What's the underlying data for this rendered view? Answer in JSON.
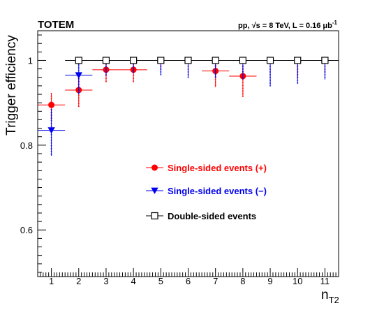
{
  "chart_data": {
    "type": "scatter",
    "experiment_label": "TOTEM",
    "annotation": "pp, √s = 8 TeV, L = 0.16 μb",
    "annotation_sup": "-1",
    "xlabel": "n",
    "xlabel_sub": "T2",
    "ylabel": "Trigger efficiency",
    "xlim": [
      0.5,
      11.5
    ],
    "ylim": [
      0.49,
      1.07
    ],
    "x_ticks": [
      1,
      2,
      3,
      4,
      5,
      6,
      7,
      8,
      9,
      10,
      11
    ],
    "y_ticks": [
      0.6,
      0.8,
      1
    ],
    "y_tick_labels": [
      "0.6",
      "0.8",
      "1"
    ],
    "grid": false,
    "legend_position": "center",
    "series": [
      {
        "name": "Single-sided events (+)",
        "color": "#ff0000",
        "marker": "filled-circle",
        "points": [
          {
            "x": 1,
            "y": 0.895,
            "xerr": 0.5,
            "yerr_lo": 0.035,
            "yerr_hi": 0.028
          },
          {
            "x": 2,
            "y": 0.93,
            "xerr": 0.5,
            "yerr_lo": 0.04,
            "yerr_hi": 0.035
          },
          {
            "x": 3,
            "y": 0.978,
            "xerr": 0.5,
            "yerr_lo": 0.03,
            "yerr_hi": 0.02
          },
          {
            "x": 4,
            "y": 0.978,
            "xerr": 0.5,
            "yerr_lo": 0.03,
            "yerr_hi": 0.02
          },
          {
            "x": 5,
            "y": 1.0,
            "xerr": 0.5,
            "yerr_lo": 0.02,
            "yerr_hi": 0.0
          },
          {
            "x": 6,
            "y": 1.0,
            "xerr": 0.5,
            "yerr_lo": 0.025,
            "yerr_hi": 0.0
          },
          {
            "x": 7,
            "y": 0.975,
            "xerr": 0.5,
            "yerr_lo": 0.038,
            "yerr_hi": 0.02
          },
          {
            "x": 8,
            "y": 0.963,
            "xerr": 0.5,
            "yerr_lo": 0.048,
            "yerr_hi": 0.025
          },
          {
            "x": 9,
            "y": 1.0,
            "xerr": 0.5,
            "yerr_lo": 0.04,
            "yerr_hi": 0.0
          },
          {
            "x": 10,
            "y": 1.0,
            "xerr": 0.5,
            "yerr_lo": 0.04,
            "yerr_hi": 0.0
          },
          {
            "x": 11,
            "y": 1.0,
            "xerr": 0.5,
            "yerr_lo": 0.03,
            "yerr_hi": 0.0
          }
        ]
      },
      {
        "name": "Single-sided events (−)",
        "color": "#0000ee",
        "marker": "filled-triangle-down",
        "points": [
          {
            "x": 1,
            "y": 0.835,
            "xerr": 0.5,
            "yerr_lo": 0.06,
            "yerr_hi": 0.05
          },
          {
            "x": 2,
            "y": 0.965,
            "xerr": 0.5,
            "yerr_lo": 0.045,
            "yerr_hi": 0.025
          },
          {
            "x": 3,
            "y": 1.0,
            "xerr": 0.5,
            "yerr_lo": 0.035,
            "yerr_hi": 0.0
          },
          {
            "x": 4,
            "y": 1.0,
            "xerr": 0.5,
            "yerr_lo": 0.03,
            "yerr_hi": 0.0
          },
          {
            "x": 5,
            "y": 1.0,
            "xerr": 0.5,
            "yerr_lo": 0.035,
            "yerr_hi": 0.0
          },
          {
            "x": 6,
            "y": 1.0,
            "xerr": 0.5,
            "yerr_lo": 0.04,
            "yerr_hi": 0.0
          },
          {
            "x": 7,
            "y": 1.0,
            "xerr": 0.5,
            "yerr_lo": 0.04,
            "yerr_hi": 0.0
          },
          {
            "x": 8,
            "y": 1.0,
            "xerr": 0.5,
            "yerr_lo": 0.045,
            "yerr_hi": 0.0
          },
          {
            "x": 9,
            "y": 1.0,
            "xerr": 0.5,
            "yerr_lo": 0.06,
            "yerr_hi": 0.0
          },
          {
            "x": 10,
            "y": 1.0,
            "xerr": 0.5,
            "yerr_lo": 0.055,
            "yerr_hi": 0.0
          },
          {
            "x": 11,
            "y": 1.0,
            "xerr": 0.5,
            "yerr_lo": 0.045,
            "yerr_hi": 0.0
          }
        ]
      },
      {
        "name": "Double-sided events",
        "color": "#000000",
        "marker": "open-square",
        "points": [
          {
            "x": 2,
            "y": 1.0,
            "xerr": 0.5,
            "yerr_lo": 0.01,
            "yerr_hi": 0.0
          },
          {
            "x": 3,
            "y": 1.0,
            "xerr": 0.5,
            "yerr_lo": 0.008,
            "yerr_hi": 0.0
          },
          {
            "x": 4,
            "y": 1.0,
            "xerr": 0.5,
            "yerr_lo": 0.008,
            "yerr_hi": 0.0
          },
          {
            "x": 5,
            "y": 1.0,
            "xerr": 0.5,
            "yerr_lo": 0.006,
            "yerr_hi": 0.0
          },
          {
            "x": 6,
            "y": 1.0,
            "xerr": 0.5,
            "yerr_lo": 0.006,
            "yerr_hi": 0.0
          },
          {
            "x": 7,
            "y": 1.0,
            "xerr": 0.5,
            "yerr_lo": 0.006,
            "yerr_hi": 0.0
          },
          {
            "x": 8,
            "y": 1.0,
            "xerr": 0.5,
            "yerr_lo": 0.006,
            "yerr_hi": 0.0
          },
          {
            "x": 9,
            "y": 1.0,
            "xerr": 0.5,
            "yerr_lo": 0.008,
            "yerr_hi": 0.0
          },
          {
            "x": 10,
            "y": 1.0,
            "xerr": 0.5,
            "yerr_lo": 0.008,
            "yerr_hi": 0.0
          },
          {
            "x": 11,
            "y": 1.0,
            "xerr": 0.5,
            "yerr_lo": 0.008,
            "yerr_hi": 0.0
          }
        ]
      }
    ]
  }
}
